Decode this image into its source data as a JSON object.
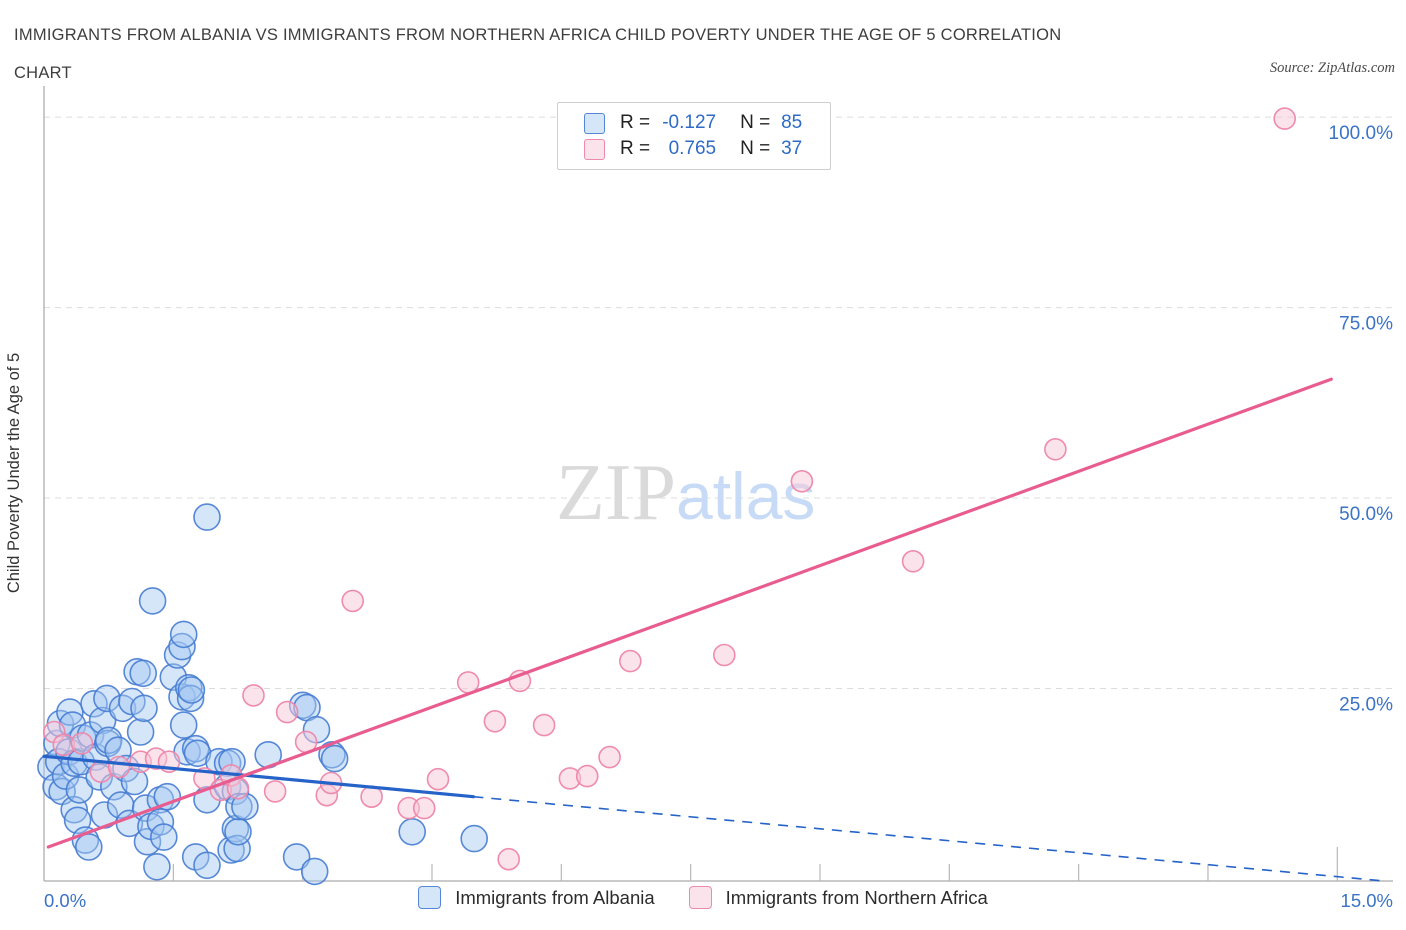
{
  "header": {
    "title_line1": "IMMIGRANTS FROM ALBANIA VS IMMIGRANTS FROM NORTHERN AFRICA CHILD POVERTY UNDER THE AGE OF 5 CORRELATION",
    "title_line2": "CHART",
    "source": "Source: ZipAtlas.com"
  },
  "legend_box": {
    "rows": [
      {
        "r_label": "R =",
        "r": "-0.127",
        "n_label": "N =",
        "n": "85"
      },
      {
        "r_label": "R =",
        "r": "0.765",
        "n_label": "N =",
        "n": "37"
      }
    ]
  },
  "watermark": {
    "zip": "ZIP",
    "atlas": "atlas"
  },
  "y_axis": {
    "title": "Child Poverty Under the Age of 5"
  },
  "x_axis": {
    "min_label": "0.0%",
    "max_label": "15.0%"
  },
  "bottom_legend": {
    "items": [
      {
        "label": "Immigrants from Albania"
      },
      {
        "label": "Immigrants from Northern Africa"
      }
    ]
  },
  "colors": {
    "albania_fill": "rgba(163,199,242,0.45)",
    "albania_stroke": "rgba(70,124,209,0.9)",
    "albania_line": "#2563c9",
    "na_fill": "rgba(248,199,216,0.5)",
    "na_stroke": "rgba(238,134,170,0.95)",
    "na_line": "#e85c8f",
    "axis_label": "#3b73c6",
    "grid": "#dcdcdc",
    "axis": "#b8b8b8"
  },
  "chart_data": {
    "type": "scatter",
    "title": "Immigrants from Albania vs Immigrants from Northern Africa Child Poverty under the Age of 5 Correlation",
    "xlabel_units": "percent immigrants",
    "ylabel": "Child Poverty Under the Age of 5",
    "xlim": [
      0,
      15.65
    ],
    "ylim": [
      0,
      104
    ],
    "y_ticks": [
      {
        "v": 100,
        "label": "100.0%"
      },
      {
        "v": 75,
        "label": "75.0%"
      },
      {
        "v": 50,
        "label": "50.0%"
      },
      {
        "v": 25,
        "label": "25.0%"
      }
    ],
    "x_minor_ticks": [
      1.5,
      3,
      4.5,
      6,
      7.5,
      9,
      10.5,
      12,
      13.5,
      15
    ],
    "series": [
      {
        "name": "Immigrants from Albania",
        "R": -0.127,
        "N": 85,
        "radius": 13,
        "points": [
          [
            0.08,
            14.7
          ],
          [
            0.14,
            12.1
          ],
          [
            0.15,
            17.8
          ],
          [
            0.17,
            15.4
          ],
          [
            0.19,
            20.4
          ],
          [
            0.21,
            11.5
          ],
          [
            0.25,
            13.5
          ],
          [
            0.29,
            16.7
          ],
          [
            0.3,
            21.9
          ],
          [
            0.33,
            20.2
          ],
          [
            0.35,
            15.2
          ],
          [
            0.35,
            9.1
          ],
          [
            0.39,
            7.7
          ],
          [
            0.41,
            11.7
          ],
          [
            0.43,
            15.4
          ],
          [
            0.45,
            18.5
          ],
          [
            0.48,
            5.1
          ],
          [
            0.52,
            4.2
          ],
          [
            0.54,
            18.9
          ],
          [
            0.58,
            23.0
          ],
          [
            0.6,
            16.0
          ],
          [
            0.64,
            13.4
          ],
          [
            0.68,
            20.8
          ],
          [
            0.7,
            8.4
          ],
          [
            0.73,
            23.7
          ],
          [
            0.74,
            17.8
          ],
          [
            0.75,
            18.2
          ],
          [
            0.81,
            12.1
          ],
          [
            0.86,
            16.9
          ],
          [
            0.89,
            9.7
          ],
          [
            0.91,
            22.4
          ],
          [
            0.95,
            14.5
          ],
          [
            0.99,
            7.3
          ],
          [
            1.02,
            23.3
          ],
          [
            1.05,
            12.8
          ],
          [
            1.08,
            27.2
          ],
          [
            1.12,
            19.3
          ],
          [
            1.15,
            27.0
          ],
          [
            1.16,
            22.4
          ],
          [
            1.18,
            9.3
          ],
          [
            1.2,
            4.9
          ],
          [
            1.24,
            6.9
          ],
          [
            1.26,
            36.5
          ],
          [
            1.31,
            1.6
          ],
          [
            1.35,
            10.4
          ],
          [
            1.35,
            7.5
          ],
          [
            1.39,
            5.5
          ],
          [
            1.43,
            10.8
          ],
          [
            1.5,
            26.5
          ],
          [
            1.55,
            29.4
          ],
          [
            1.6,
            30.5
          ],
          [
            1.6,
            23.9
          ],
          [
            1.62,
            32.1
          ],
          [
            1.62,
            20.2
          ],
          [
            1.66,
            16.7
          ],
          [
            1.68,
            25.1
          ],
          [
            1.7,
            23.7
          ],
          [
            1.71,
            24.8
          ],
          [
            1.76,
            17.1
          ],
          [
            1.76,
            2.9
          ],
          [
            1.78,
            16.5
          ],
          [
            1.89,
            47.5
          ],
          [
            1.89,
            10.4
          ],
          [
            1.89,
            1.8
          ],
          [
            2.03,
            15.4
          ],
          [
            2.13,
            15.2
          ],
          [
            2.13,
            12.1
          ],
          [
            2.17,
            3.8
          ],
          [
            2.18,
            15.4
          ],
          [
            2.22,
            11.5
          ],
          [
            2.22,
            6.6
          ],
          [
            2.24,
            4.0
          ],
          [
            2.25,
            6.2
          ],
          [
            2.26,
            9.5
          ],
          [
            2.33,
            9.5
          ],
          [
            2.6,
            16.3
          ],
          [
            2.93,
            2.9
          ],
          [
            3.0,
            22.8
          ],
          [
            3.05,
            22.5
          ],
          [
            3.14,
            1.0
          ],
          [
            3.16,
            19.6
          ],
          [
            3.34,
            16.3
          ],
          [
            3.37,
            15.8
          ],
          [
            4.27,
            6.2
          ],
          [
            4.99,
            5.3
          ]
        ],
        "trend_solid": [
          [
            0,
            16.1
          ],
          [
            4.98,
            10.8
          ]
        ],
        "trend_dashed": [
          [
            4.98,
            10.8
          ],
          [
            15.58,
            -0.3
          ]
        ]
      },
      {
        "name": "Immigrants from Northern Africa",
        "R": 0.765,
        "N": 37,
        "radius": 10.5,
        "points": [
          [
            0.12,
            19.3
          ],
          [
            0.23,
            17.6
          ],
          [
            0.44,
            17.8
          ],
          [
            0.66,
            14.1
          ],
          [
            0.87,
            14.7
          ],
          [
            1.12,
            15.4
          ],
          [
            1.3,
            15.8
          ],
          [
            1.45,
            15.4
          ],
          [
            1.86,
            13.2
          ],
          [
            2.05,
            11.7
          ],
          [
            2.17,
            13.6
          ],
          [
            2.25,
            11.9
          ],
          [
            2.43,
            24.1
          ],
          [
            2.68,
            11.5
          ],
          [
            2.82,
            21.9
          ],
          [
            3.04,
            18.0
          ],
          [
            3.28,
            11.0
          ],
          [
            3.33,
            12.6
          ],
          [
            3.58,
            36.5
          ],
          [
            3.8,
            10.8
          ],
          [
            4.23,
            9.3
          ],
          [
            4.41,
            9.3
          ],
          [
            4.57,
            13.1
          ],
          [
            4.92,
            25.8
          ],
          [
            5.23,
            20.7
          ],
          [
            5.39,
            2.6
          ],
          [
            5.52,
            26.0
          ],
          [
            5.8,
            20.2
          ],
          [
            6.1,
            13.2
          ],
          [
            6.3,
            13.5
          ],
          [
            6.56,
            16.0
          ],
          [
            6.8,
            28.6
          ],
          [
            7.89,
            29.4
          ],
          [
            8.79,
            52.2
          ],
          [
            10.08,
            41.7
          ],
          [
            11.73,
            56.4
          ],
          [
            14.39,
            99.8
          ]
        ],
        "trend_solid": [
          [
            0.05,
            4.2
          ],
          [
            14.93,
            65.6
          ]
        ]
      }
    ]
  }
}
